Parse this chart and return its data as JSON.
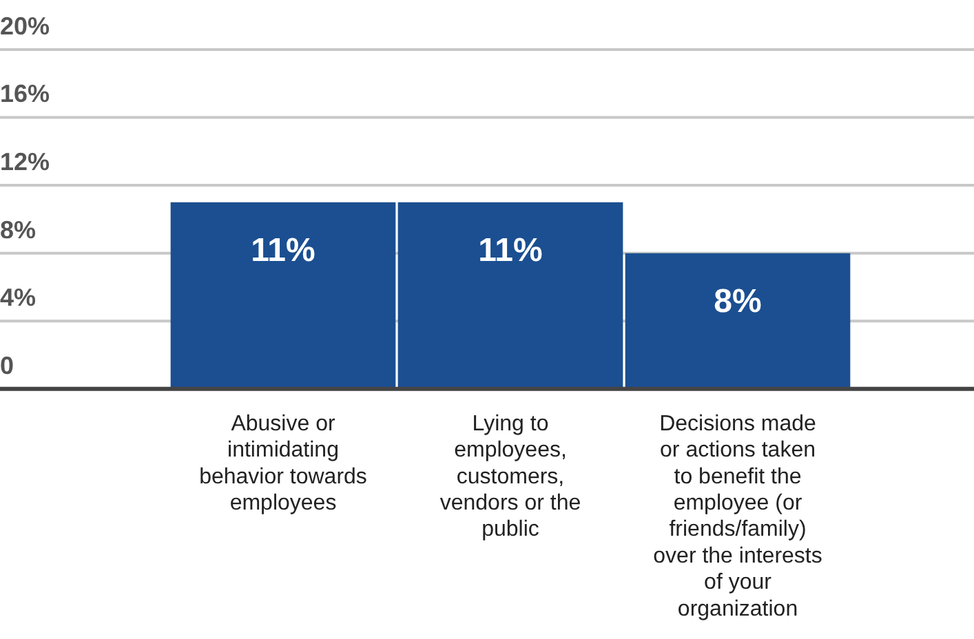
{
  "chart_data": {
    "type": "bar",
    "categories": [
      "Abusive or intimidating behavior towards employees",
      "Lying to employees, customers, vendors or the public",
      "Decisions made or actions taken to benefit the employee (or friends/family) over the interests of your organization"
    ],
    "values": [
      11,
      11,
      8
    ],
    "value_labels": [
      "11%",
      "11%",
      "8%"
    ],
    "color": "#1b4f91",
    "ylim": [
      0,
      20
    ],
    "yticks": [
      {
        "value": 0,
        "label": "0"
      },
      {
        "value": 4,
        "label": "4%"
      },
      {
        "value": 8,
        "label": "8%"
      },
      {
        "value": 12,
        "label": "12%"
      },
      {
        "value": 16,
        "label": "16%"
      },
      {
        "value": 20,
        "label": "20%"
      }
    ],
    "grid": "y",
    "legend": false
  }
}
